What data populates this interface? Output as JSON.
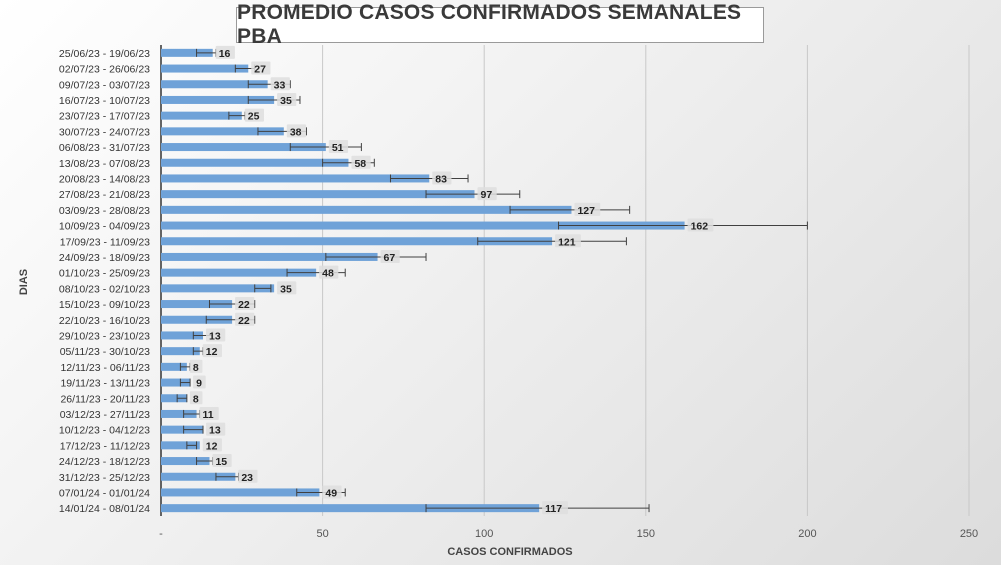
{
  "chart_data": {
    "type": "bar",
    "orientation": "horizontal",
    "title": "PROMEDIO CASOS CONFIRMADOS SEMANALES PBA",
    "xlabel": "CASOS CONFIRMADOS",
    "ylabel": "DIAS",
    "xlim": [
      0,
      250
    ],
    "x_ticks": [
      "-",
      "50",
      "100",
      "150",
      "200",
      "250"
    ],
    "grid": "vertical",
    "bar_color": "#6fa2d8",
    "error_bar_color": "#404040",
    "categories": [
      "25/06/23 - 19/06/23",
      "02/07/23 - 26/06/23",
      "09/07/23 - 03/07/23",
      "16/07/23 - 10/07/23",
      "23/07/23 - 17/07/23",
      "30/07/23 - 24/07/23",
      "06/08/23 - 31/07/23",
      "13/08/23 - 07/08/23",
      "20/08/23 - 14/08/23",
      "27/08/23 - 21/08/23",
      "03/09/23 - 28/08/23",
      "10/09/23 - 04/09/23",
      "17/09/23 - 11/09/23",
      "24/09/23 - 18/09/23",
      "01/10/23 - 25/09/23",
      "08/10/23 - 02/10/23",
      "15/10/23 - 09/10/23",
      "22/10/23 - 16/10/23",
      "29/10/23 - 23/10/23",
      "05/11/23 - 30/10/23",
      "12/11/23 - 06/11/23",
      "19/11/23 - 13/11/23",
      "26/11/23 - 20/11/23",
      "03/12/23 - 27/11/23",
      "10/12/23 - 04/12/23",
      "17/12/23 - 11/12/23",
      "24/12/23 - 18/12/23",
      "31/12/23 - 25/12/23",
      "07/01/24 - 01/01/24",
      "14/01/24 - 08/01/24"
    ],
    "values": [
      16,
      27,
      33,
      35,
      25,
      38,
      51,
      58,
      83,
      97,
      127,
      162,
      121,
      67,
      48,
      35,
      22,
      22,
      13,
      12,
      8,
      9,
      8,
      11,
      13,
      12,
      15,
      23,
      49,
      117
    ],
    "value_labels": [
      "16",
      "27",
      "33",
      "35",
      "25",
      "38",
      "51",
      "58",
      "83",
      "97",
      "127",
      "162",
      "121",
      "67",
      "48",
      "35",
      "22",
      "22",
      "13",
      "12",
      "8",
      "9",
      "8",
      "11",
      "13",
      "12",
      "15",
      "23",
      "49",
      "117"
    ],
    "error_ranges": [
      [
        11,
        17
      ],
      [
        23,
        29
      ],
      [
        27,
        40
      ],
      [
        27,
        43
      ],
      [
        21,
        26
      ],
      [
        30,
        45
      ],
      [
        40,
        62
      ],
      [
        50,
        66
      ],
      [
        71,
        95
      ],
      [
        82,
        111
      ],
      [
        108,
        145
      ],
      [
        123,
        200
      ],
      [
        98,
        144
      ],
      [
        51,
        82
      ],
      [
        39,
        57
      ],
      [
        29,
        34
      ],
      [
        15,
        29
      ],
      [
        14,
        29
      ],
      [
        10,
        16
      ],
      [
        10,
        13
      ],
      [
        6,
        9
      ],
      [
        6,
        9
      ],
      [
        5,
        8
      ],
      [
        7,
        12
      ],
      [
        7,
        13
      ],
      [
        8,
        11
      ],
      [
        11,
        16
      ],
      [
        17,
        24
      ],
      [
        42,
        57
      ],
      [
        82,
        151
      ]
    ]
  }
}
